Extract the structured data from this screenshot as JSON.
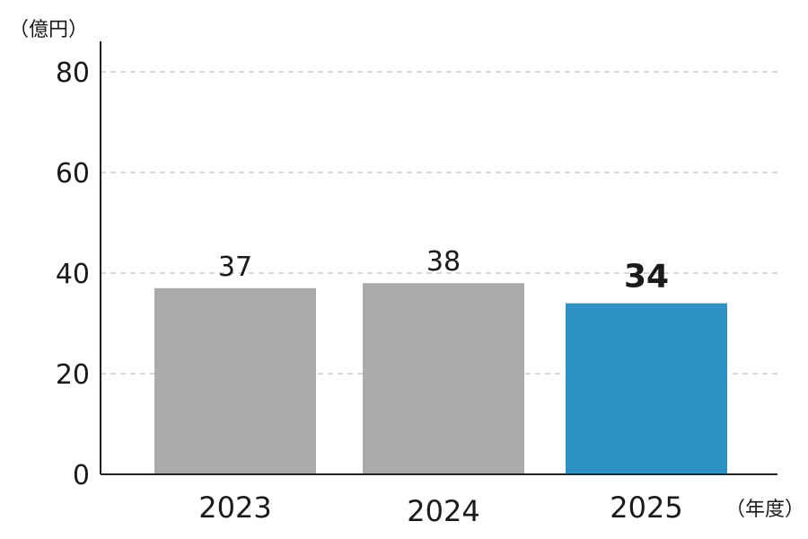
{
  "chart_data": {
    "type": "bar",
    "categories": [
      "2023",
      "2024",
      "2025"
    ],
    "values": [
      37,
      38,
      34
    ],
    "data_labels": [
      "37",
      "38",
      "34"
    ],
    "y_unit_label": "（億円）",
    "x_unit_label": "（年度）",
    "ylim": [
      0,
      80
    ],
    "yticks": [
      0,
      20,
      40,
      60,
      80
    ],
    "ytick_labels": [
      "0",
      "20",
      "40",
      "60",
      "80"
    ],
    "grid": true,
    "highlight_index": 2,
    "colors": {
      "default_bar": "#aaaaaa",
      "highlight_bar": "#2e92c5",
      "grid": "#cccccc",
      "axis": "#222222"
    }
  }
}
